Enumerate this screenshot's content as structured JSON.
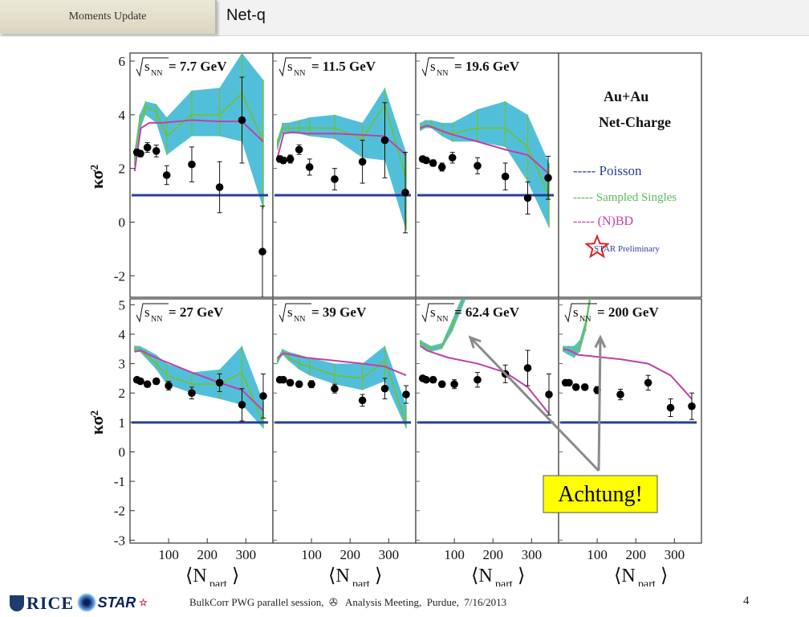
{
  "header": {
    "tab_label": "Moments Update",
    "title": "Net-q"
  },
  "footer": {
    "text": "BulkCorr PWG parallel session,  ✇   Analysis Meeting,  Purdue,  7/16/2013",
    "page_number": "4",
    "logo_rice": "RICE",
    "logo_star": "STAR"
  },
  "callout": {
    "text": "Achtung!",
    "color": "#ffff00"
  },
  "legend_panel": {
    "system": "Au+Au",
    "observable": "Net-Charge",
    "entries": [
      {
        "label": "----- Poisson",
        "color": "#2b3f96"
      },
      {
        "label": "----- Sampled Singles",
        "color": "#5cb85c"
      },
      {
        "label": "----- (N)BD",
        "color": "#c040a8"
      }
    ],
    "preliminary": "STAR Preliminary"
  },
  "chart_data": [
    {
      "type": "scatter",
      "panel": "7.7 GeV",
      "label": "√s_NN = 7.7 GeV",
      "x": [
        18,
        27,
        45,
        68,
        95,
        160,
        232,
        290,
        343
      ],
      "y": [
        2.6,
        2.55,
        2.78,
        2.65,
        1.75,
        2.15,
        1.3,
        3.8,
        -1.1
      ],
      "yerr": [
        0.12,
        0.12,
        0.18,
        0.22,
        0.35,
        0.65,
        0.95,
        1.6,
        1.7
      ],
      "poisson": 1.0,
      "nbd": {
        "x": [
          12,
          28,
          50,
          85,
          160,
          232,
          290,
          345
        ],
        "y": [
          1.9,
          3.5,
          3.7,
          3.7,
          3.8,
          3.75,
          3.75,
          3.0
        ]
      },
      "sampled_singles": {
        "x": [
          12,
          25,
          40,
          68,
          95,
          160,
          232,
          290,
          345
        ],
        "y": [
          2.4,
          3.7,
          4.3,
          4.1,
          3.2,
          4.0,
          4.0,
          4.8,
          3.0
        ],
        "band_low": [
          2.1,
          3.4,
          4.0,
          3.7,
          2.5,
          3.2,
          3.2,
          3.0,
          0.5
        ],
        "band_high": [
          2.7,
          4.0,
          4.5,
          4.4,
          3.9,
          4.9,
          5.0,
          6.3,
          5.3
        ]
      },
      "ylim": [
        -2.8,
        6.3
      ],
      "yticks": [
        -2,
        0,
        2,
        4,
        6
      ],
      "ylabel": "κσ²"
    },
    {
      "type": "scatter",
      "panel": "11.5 GeV",
      "label": "√s_NN = 11.5 GeV",
      "x": [
        18,
        27,
        45,
        68,
        95,
        160,
        232,
        290,
        343
      ],
      "y": [
        2.35,
        2.3,
        2.35,
        2.7,
        2.05,
        1.6,
        2.25,
        3.05,
        1.1
      ],
      "yerr": [
        0.12,
        0.12,
        0.15,
        0.18,
        0.3,
        0.4,
        0.8,
        1.4,
        1.5
      ],
      "poisson": 1.0,
      "nbd": {
        "x": [
          12,
          28,
          50,
          85,
          160,
          232,
          290,
          345
        ],
        "y": [
          2.4,
          3.3,
          3.35,
          3.3,
          3.3,
          3.25,
          3.2,
          2.5
        ]
      },
      "sampled_singles": {
        "x": [
          12,
          25,
          40,
          68,
          95,
          160,
          232,
          290,
          345
        ],
        "y": [
          2.9,
          3.5,
          3.5,
          3.5,
          3.5,
          3.5,
          3.1,
          4.4,
          1.6
        ],
        "band_low": [
          2.7,
          3.3,
          3.3,
          3.3,
          3.2,
          3.1,
          2.4,
          2.3,
          -0.3
        ],
        "band_high": [
          3.1,
          3.7,
          3.7,
          3.8,
          3.9,
          4.0,
          3.7,
          5.0,
          2.6
        ]
      },
      "ylim": [
        -2.8,
        6.3
      ],
      "yticks": [
        -2,
        0,
        2,
        4,
        6
      ]
    },
    {
      "type": "scatter",
      "panel": "19.6 GeV",
      "label": "√s_NN = 19.6 GeV",
      "x": [
        18,
        27,
        45,
        68,
        95,
        160,
        232,
        290,
        343
      ],
      "y": [
        2.35,
        2.3,
        2.2,
        2.05,
        2.4,
        2.1,
        1.7,
        0.9,
        1.65
      ],
      "yerr": [
        0.1,
        0.1,
        0.12,
        0.15,
        0.2,
        0.3,
        0.5,
        0.6,
        0.8
      ],
      "poisson": 1.0,
      "nbd": {
        "x": [
          12,
          28,
          50,
          85,
          160,
          232,
          290,
          345
        ],
        "y": [
          3.5,
          3.6,
          3.5,
          3.3,
          3.0,
          2.7,
          2.5,
          1.8
        ]
      },
      "sampled_singles": {
        "x": [
          12,
          25,
          40,
          68,
          95,
          160,
          232,
          290,
          345
        ],
        "y": [
          3.5,
          3.6,
          3.6,
          3.4,
          3.3,
          3.5,
          3.5,
          2.8,
          1.0
        ],
        "band_low": [
          3.4,
          3.5,
          3.5,
          3.2,
          3.0,
          3.0,
          2.8,
          1.5,
          -0.2
        ],
        "band_high": [
          3.7,
          3.8,
          3.8,
          3.7,
          3.7,
          4.2,
          4.5,
          4.0,
          2.2
        ]
      },
      "ylim": [
        -2.8,
        6.3
      ],
      "yticks": [
        -2,
        0,
        2,
        4,
        6
      ]
    },
    {
      "type": "scatter",
      "panel": "27 GeV",
      "label": "√s_NN = 27 GeV",
      "x": [
        18,
        27,
        45,
        68,
        100,
        160,
        232,
        290,
        345
      ],
      "y": [
        2.45,
        2.4,
        2.3,
        2.4,
        2.25,
        2.0,
        2.35,
        1.6,
        1.9
      ],
      "yerr": [
        0.08,
        0.08,
        0.1,
        0.1,
        0.15,
        0.2,
        0.3,
        0.55,
        0.75
      ],
      "poisson": 1.0,
      "nbd": {
        "x": [
          12,
          28,
          50,
          85,
          160,
          232,
          290,
          345
        ],
        "y": [
          3.4,
          3.45,
          3.3,
          3.1,
          2.7,
          2.35,
          2.1,
          1.4
        ]
      },
      "sampled_singles": {
        "x": [
          12,
          25,
          40,
          68,
          95,
          160,
          232,
          290,
          345
        ],
        "y": [
          3.5,
          3.5,
          3.3,
          3.0,
          2.6,
          2.3,
          2.3,
          2.7,
          1.0
        ],
        "band_low": [
          3.4,
          3.4,
          3.2,
          2.8,
          2.3,
          2.0,
          1.8,
          1.6,
          0.8
        ],
        "band_high": [
          3.6,
          3.6,
          3.5,
          3.3,
          3.0,
          2.7,
          2.8,
          3.6,
          1.7
        ]
      },
      "ylim": [
        -3.1,
        5.2
      ],
      "yticks": [
        -3,
        -2,
        -1,
        0,
        1,
        2,
        3,
        4,
        5
      ],
      "ylabel": "κσ²"
    },
    {
      "type": "scatter",
      "panel": "39 GeV",
      "label": "√s_NN = 39 GeV",
      "x": [
        18,
        27,
        45,
        68,
        100,
        160,
        232,
        290,
        345
      ],
      "y": [
        2.45,
        2.45,
        2.35,
        2.3,
        2.3,
        2.15,
        1.75,
        2.15,
        1.95
      ],
      "yerr": [
        0.08,
        0.08,
        0.1,
        0.1,
        0.12,
        0.15,
        0.2,
        0.35,
        0.3
      ],
      "poisson": 1.0,
      "nbd": {
        "x": [
          12,
          28,
          50,
          85,
          160,
          232,
          290,
          345
        ],
        "y": [
          3.2,
          3.35,
          3.3,
          3.2,
          3.1,
          3.0,
          2.9,
          2.6
        ]
      },
      "sampled_singles": {
        "x": [
          12,
          25,
          40,
          68,
          95,
          160,
          232,
          290,
          345
        ],
        "y": [
          3.1,
          3.4,
          3.2,
          3.0,
          2.9,
          2.6,
          2.5,
          3.1,
          1.0
        ],
        "band_low": [
          3.0,
          3.3,
          3.1,
          2.8,
          2.6,
          2.3,
          2.1,
          2.4,
          0.8
        ],
        "band_high": [
          3.2,
          3.5,
          3.4,
          3.3,
          3.2,
          3.0,
          3.0,
          3.6,
          1.6
        ]
      },
      "ylim": [
        -3.1,
        5.2
      ],
      "yticks": [
        -3,
        -2,
        -1,
        0,
        1,
        2,
        3,
        4,
        5
      ]
    },
    {
      "type": "scatter",
      "panel": "62.4 GeV",
      "label": "√s_NN = 62.4 GeV",
      "x": [
        18,
        27,
        45,
        68,
        100,
        160,
        232,
        290,
        345
      ],
      "y": [
        2.5,
        2.45,
        2.45,
        2.3,
        2.3,
        2.45,
        2.65,
        2.85,
        1.95
      ],
      "yerr": [
        0.08,
        0.08,
        0.1,
        0.1,
        0.15,
        0.25,
        0.3,
        0.6,
        0.7
      ],
      "poisson": 1.0,
      "nbd": {
        "x": [
          12,
          28,
          50,
          85,
          160,
          232,
          290,
          345
        ],
        "y": [
          3.6,
          3.45,
          3.35,
          3.2,
          3.0,
          2.7,
          2.2,
          1.3
        ]
      },
      "sampled_singles": {
        "x": [
          12,
          25,
          40,
          68,
          95,
          130
        ],
        "y": [
          3.7,
          3.6,
          3.5,
          3.6,
          4.3,
          5.4
        ],
        "band_low": [
          3.6,
          3.5,
          3.4,
          3.5,
          4.1,
          5.2
        ],
        "band_high": [
          3.8,
          3.7,
          3.6,
          3.7,
          4.5,
          5.6
        ]
      },
      "ylim": [
        -3.1,
        5.2
      ],
      "yticks": [
        -3,
        -2,
        -1,
        0,
        1,
        2,
        3,
        4,
        5
      ]
    },
    {
      "type": "scatter",
      "panel": "200 GeV",
      "label": "√s_NN = 200 GeV",
      "x": [
        18,
        27,
        45,
        68,
        100,
        160,
        232,
        290,
        345
      ],
      "y": [
        2.35,
        2.35,
        2.2,
        2.2,
        2.1,
        1.95,
        2.35,
        1.5,
        1.55
      ],
      "yerr": [
        0.08,
        0.08,
        0.1,
        0.1,
        0.12,
        0.18,
        0.25,
        0.3,
        0.45
      ],
      "poisson": 1.0,
      "nbd": {
        "x": [
          12,
          28,
          50,
          85,
          160,
          232,
          290,
          345
        ],
        "y": [
          3.5,
          3.45,
          3.3,
          3.25,
          3.15,
          3.0,
          2.6,
          1.8
        ]
      },
      "sampled_singles": {
        "x": [
          12,
          25,
          40,
          55,
          70,
          85
        ],
        "y": [
          3.5,
          3.45,
          3.4,
          3.6,
          4.3,
          5.5
        ],
        "band_low": [
          3.4,
          3.3,
          3.2,
          3.4,
          4.1,
          5.3
        ],
        "band_high": [
          3.6,
          3.6,
          3.6,
          3.8,
          4.5,
          5.7
        ]
      },
      "ylim": [
        -3.1,
        5.2
      ],
      "yticks": [
        -3,
        -2,
        -1,
        0,
        1,
        2,
        3,
        4,
        5
      ]
    }
  ],
  "x_axis": {
    "label": "⟨N",
    "label_sub": "part",
    "label_close": "⟩",
    "ticks": [
      100,
      200,
      300
    ],
    "xlim": [
      0,
      370
    ]
  }
}
